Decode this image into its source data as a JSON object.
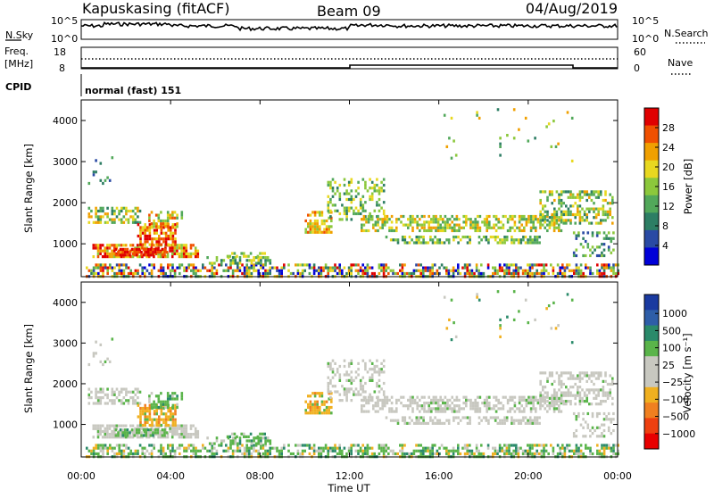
{
  "header": {
    "station": "Kapuskasing (fitACF)",
    "beam": "Beam 09",
    "date": "04/Aug/2019"
  },
  "top_panels": {
    "nsky_label": "N.Sky",
    "nsky_ticks": [
      "10^5",
      "10^0"
    ],
    "nsearch_label": "N.Search",
    "nsearch_ticks": [
      "10^5",
      "10^0"
    ],
    "freq_label_line1": "Freq.",
    "freq_label_line2": "[MHz]",
    "freq_ticks": [
      "18",
      "8"
    ],
    "nave_label": "Nave",
    "nave_ticks": [
      "60",
      "0"
    ],
    "cpid_label": "CPID",
    "cpid_value": "normal (fast) 151"
  },
  "colors": {
    "power_scale": [
      "#0000d8",
      "#2a4aa4",
      "#2d7e64",
      "#52a85a",
      "#8cc83c",
      "#e8d820",
      "#f0a000",
      "#f05000",
      "#e00000"
    ],
    "velocity_scale": [
      "#1a3aa0",
      "#2e5ea8",
      "#2a8a6a",
      "#5ab44a",
      "#c8c8c0",
      "#c8c8c0",
      "#f0b020",
      "#f08020",
      "#ee4010",
      "#e80000"
    ]
  },
  "chart_data": [
    {
      "type": "heatmap",
      "name": "power",
      "xlabel": "",
      "ylabel": "Slant Range [km]",
      "y_ticks": [
        "1000",
        "2000",
        "3000",
        "4000"
      ],
      "ylim": [
        200,
        4500
      ],
      "xlim_hours": [
        0,
        24
      ],
      "colorbar": {
        "label": "Power [dB]",
        "ticks": [
          "4",
          "8",
          "12",
          "16",
          "20",
          "24",
          "28"
        ],
        "range": [
          0,
          32
        ]
      }
    },
    {
      "type": "heatmap",
      "name": "velocity",
      "xlabel": "Time UT",
      "ylabel": "Slant Range [km]",
      "y_ticks": [
        "1000",
        "2000",
        "3000",
        "4000"
      ],
      "ylim": [
        200,
        4500
      ],
      "x_ticks": [
        "00:00",
        "04:00",
        "08:00",
        "12:00",
        "16:00",
        "20:00",
        "00:00"
      ],
      "colorbar": {
        "label": "Velocity [m s⁻¹]",
        "ticks": [
          "1000",
          "500",
          "100",
          "25",
          "−25",
          "−100",
          "−500",
          "−1000"
        ]
      }
    }
  ]
}
